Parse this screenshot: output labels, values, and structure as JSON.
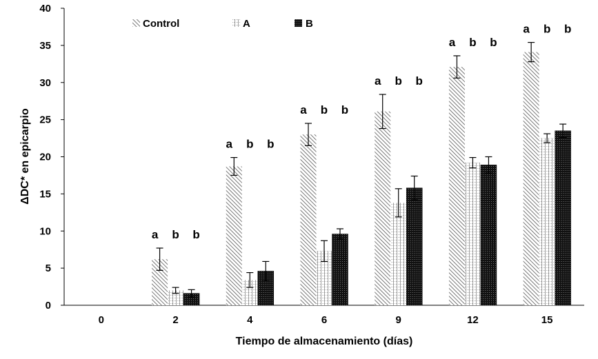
{
  "chart_data": {
    "type": "bar",
    "title": "",
    "xlabel": "Tiempo de almacenamiento (días)",
    "ylabel": "ΔDC* en epicarpio",
    "categories": [
      "0",
      "2",
      "4",
      "6",
      "9",
      "12",
      "15"
    ],
    "ylim": [
      0,
      40
    ],
    "yticks": [
      0,
      5,
      10,
      15,
      20,
      25,
      30,
      35,
      40
    ],
    "legend_position": "top",
    "grid": false,
    "series": [
      {
        "name": "Control",
        "pattern": "diagonal-hatch",
        "values": [
          0,
          6.2,
          18.7,
          23.0,
          26.1,
          32.1,
          34.1
        ],
        "errors": [
          0,
          1.5,
          1.2,
          1.5,
          2.3,
          1.5,
          1.3
        ],
        "letters": [
          "",
          "a",
          "a",
          "a",
          "a",
          "a",
          "a"
        ]
      },
      {
        "name": "A",
        "pattern": "grid",
        "values": [
          0,
          2.0,
          3.4,
          7.3,
          13.8,
          19.2,
          22.5
        ],
        "errors": [
          0,
          0.4,
          1.0,
          1.4,
          1.9,
          0.7,
          0.6
        ],
        "letters": [
          "",
          "b",
          "b",
          "b",
          "b",
          "b",
          "b"
        ]
      },
      {
        "name": "B",
        "pattern": "dense-dots",
        "values": [
          0,
          1.6,
          4.6,
          9.6,
          15.8,
          18.9,
          23.5
        ],
        "errors": [
          0,
          0.5,
          1.3,
          0.7,
          1.6,
          1.1,
          0.9
        ],
        "letters": [
          "",
          "b",
          "b",
          "b",
          "b",
          "b",
          "b"
        ]
      }
    ]
  }
}
